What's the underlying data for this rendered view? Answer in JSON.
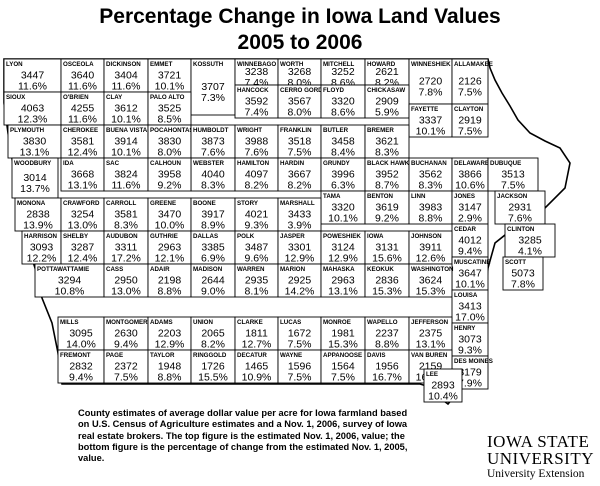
{
  "title": {
    "line1": "Percentage Change in Iowa Land Values",
    "line2": "2005 to 2006"
  },
  "footnote": "County estimates of average dollar value per acre for Iowa farmland based on U.S. Census of Agriculture estimates and a Nov. 1, 2006, survey of Iowa real estate brokers. The top figure is the estimated Nov. 1, 2006, value; the bottom figure is the percentage of change from the estimated Nov. 1, 2005, value.",
  "logo": {
    "line1": "IOWA STATE",
    "line2": "UNIVERSITY",
    "line3": "University Extension"
  },
  "counties": [
    {
      "name": "LYON",
      "value": "3447",
      "pct": "11.6%"
    },
    {
      "name": "OSCEOLA",
      "value": "3640",
      "pct": "11.6%"
    },
    {
      "name": "DICKINSON",
      "value": "3404",
      "pct": "11.6%"
    },
    {
      "name": "EMMET",
      "value": "3721",
      "pct": "10.1%"
    },
    {
      "name": "KOSSUTH",
      "value": "3707",
      "pct": "7.3%"
    },
    {
      "name": "WINNEBAGO",
      "value": "3238",
      "pct": "7.4%"
    },
    {
      "name": "WORTH",
      "value": "3268",
      "pct": "8.0%"
    },
    {
      "name": "MITCHELL",
      "value": "3252",
      "pct": "8.6%"
    },
    {
      "name": "HOWARD",
      "value": "2621",
      "pct": "8.2%"
    },
    {
      "name": "WINNESHIEK",
      "value": "2720",
      "pct": "7.8%"
    },
    {
      "name": "ALLAMAKEE",
      "value": "2126",
      "pct": "7.5%"
    },
    {
      "name": "SIOUX",
      "value": "4063",
      "pct": "12.3%"
    },
    {
      "name": "O'BRIEN",
      "value": "4255",
      "pct": "11.6%"
    },
    {
      "name": "CLAY",
      "value": "3612",
      "pct": "10.1%"
    },
    {
      "name": "PALO ALTO",
      "value": "3525",
      "pct": "8.5%"
    },
    {
      "name": "HANCOCK",
      "value": "3592",
      "pct": "7.4%"
    },
    {
      "name": "CERRO GORDO",
      "value": "3567",
      "pct": "8.0%"
    },
    {
      "name": "FLOYD",
      "value": "3320",
      "pct": "8.6%"
    },
    {
      "name": "CHICKASAW",
      "value": "2909",
      "pct": "5.9%"
    },
    {
      "name": "FAYETTE",
      "value": "3337",
      "pct": "10.1%"
    },
    {
      "name": "CLAYTON",
      "value": "2919",
      "pct": "7.5%"
    },
    {
      "name": "PLYMOUTH",
      "value": "3830",
      "pct": "13.1%"
    },
    {
      "name": "CHEROKEE",
      "value": "3581",
      "pct": "12.4%"
    },
    {
      "name": "BUENA VISTA",
      "value": "3914",
      "pct": "10.1%"
    },
    {
      "name": "POCAHONTAS",
      "value": "3830",
      "pct": "8.0%"
    },
    {
      "name": "HUMBOLDT",
      "value": "3873",
      "pct": "7.6%"
    },
    {
      "name": "WRIGHT",
      "value": "3988",
      "pct": "7.6%"
    },
    {
      "name": "FRANKLIN",
      "value": "3518",
      "pct": "7.5%"
    },
    {
      "name": "BUTLER",
      "value": "3458",
      "pct": "8.4%"
    },
    {
      "name": "BREMER",
      "value": "3621",
      "pct": "8.3%"
    },
    {
      "name": "WEBSTER",
      "value": "4040",
      "pct": "8.3%"
    },
    {
      "name": "HAMILTON",
      "value": "4097",
      "pct": "8.2%"
    },
    {
      "name": "HARDIN",
      "value": "3667",
      "pct": "8.2%"
    },
    {
      "name": "GRUNDY",
      "value": "3996",
      "pct": "6.3%"
    },
    {
      "name": "BLACK HAWK",
      "value": "3952",
      "pct": "8.7%"
    },
    {
      "name": "BUCHANAN",
      "value": "3562",
      "pct": "8.3%"
    },
    {
      "name": "DELAWARE",
      "value": "3866",
      "pct": "10.6%"
    },
    {
      "name": "DUBUQUE",
      "value": "3513",
      "pct": "7.5%"
    },
    {
      "name": "WOODBURY",
      "value": "3014",
      "pct": "13.7%"
    },
    {
      "name": "IDA",
      "value": "3668",
      "pct": "13.1%"
    },
    {
      "name": "SAC",
      "value": "3824",
      "pct": "11.6%"
    },
    {
      "name": "CALHOUN",
      "value": "3958",
      "pct": "9.2%"
    },
    {
      "name": "TAMA",
      "value": "3320",
      "pct": "10.1%"
    },
    {
      "name": "BENTON",
      "value": "3619",
      "pct": "9.2%"
    },
    {
      "name": "LINN",
      "value": "3983",
      "pct": "8.8%"
    },
    {
      "name": "JONES",
      "value": "3147",
      "pct": "2.9%"
    },
    {
      "name": "JACKSON",
      "value": "2931",
      "pct": "7.6%"
    },
    {
      "name": "MONONA",
      "value": "2838",
      "pct": "13.9%"
    },
    {
      "name": "CRAWFORD",
      "value": "3254",
      "pct": "13.0%"
    },
    {
      "name": "CARROLL",
      "value": "3581",
      "pct": "8.3%"
    },
    {
      "name": "GREENE",
      "value": "3470",
      "pct": "10.0%"
    },
    {
      "name": "BOONE",
      "value": "3917",
      "pct": "8.9%"
    },
    {
      "name": "STORY",
      "value": "4021",
      "pct": "9.3%"
    },
    {
      "name": "MARSHALL",
      "value": "3433",
      "pct": "3.9%"
    },
    {
      "name": "CLINTON",
      "value": "3285",
      "pct": "4.1%"
    },
    {
      "name": "CEDAR",
      "value": "4012",
      "pct": "9.4%"
    },
    {
      "name": "HARRISON",
      "value": "3093",
      "pct": "12.2%"
    },
    {
      "name": "SHELBY",
      "value": "3287",
      "pct": "12.4%"
    },
    {
      "name": "AUDUBON",
      "value": "3311",
      "pct": "17.2%"
    },
    {
      "name": "GUTHRIE",
      "value": "2963",
      "pct": "12.1%"
    },
    {
      "name": "DALLAS",
      "value": "3385",
      "pct": "6.9%"
    },
    {
      "name": "POLK",
      "value": "3487",
      "pct": "9.6%"
    },
    {
      "name": "JASPER",
      "value": "3301",
      "pct": "12.9%"
    },
    {
      "name": "POWESHIEK",
      "value": "3124",
      "pct": "12.9%"
    },
    {
      "name": "IOWA",
      "value": "3131",
      "pct": "15.6%"
    },
    {
      "name": "JOHNSON",
      "value": "3911",
      "pct": "12.6%"
    },
    {
      "name": "SCOTT",
      "value": "5073",
      "pct": "7.8%"
    },
    {
      "name": "MUSCATINE",
      "value": "3647",
      "pct": "10.1%"
    },
    {
      "name": "POTTAWATTAMIE",
      "value": "3294",
      "pct": "10.8%"
    },
    {
      "name": "CASS",
      "value": "2950",
      "pct": "13.0%"
    },
    {
      "name": "ADAIR",
      "value": "2198",
      "pct": "8.8%"
    },
    {
      "name": "MADISON",
      "value": "2644",
      "pct": "9.0%"
    },
    {
      "name": "WARREN",
      "value": "2935",
      "pct": "8.1%"
    },
    {
      "name": "MARION",
      "value": "2925",
      "pct": "14.2%"
    },
    {
      "name": "MAHASKA",
      "value": "2963",
      "pct": "13.1%"
    },
    {
      "name": "KEOKUK",
      "value": "2836",
      "pct": "15.3%"
    },
    {
      "name": "WASHINGTON",
      "value": "3624",
      "pct": "15.3%"
    },
    {
      "name": "LOUISA",
      "value": "3413",
      "pct": "17.0%"
    },
    {
      "name": "MILLS",
      "value": "3095",
      "pct": "14.0%"
    },
    {
      "name": "MONTGOMERY",
      "value": "2630",
      "pct": "9.4%"
    },
    {
      "name": "ADAMS",
      "value": "2203",
      "pct": "12.9%"
    },
    {
      "name": "UNION",
      "value": "2065",
      "pct": "8.2%"
    },
    {
      "name": "CLARKE",
      "value": "1811",
      "pct": "12.7%"
    },
    {
      "name": "LUCAS",
      "value": "1672",
      "pct": "7.5%"
    },
    {
      "name": "MONROE",
      "value": "1981",
      "pct": "15.3%"
    },
    {
      "name": "WAPELLO",
      "value": "2237",
      "pct": "8.8%"
    },
    {
      "name": "JEFFERSON",
      "value": "2375",
      "pct": "13.1%"
    },
    {
      "name": "HENRY",
      "value": "3073",
      "pct": "9.3%"
    },
    {
      "name": "DES MOINES",
      "value": "3179",
      "pct": "7.9%"
    },
    {
      "name": "FREMONT",
      "value": "2832",
      "pct": "9.4%"
    },
    {
      "name": "PAGE",
      "value": "2372",
      "pct": "7.5%"
    },
    {
      "name": "TAYLOR",
      "value": "1948",
      "pct": "8.8%"
    },
    {
      "name": "RINGGOLD",
      "value": "1726",
      "pct": "15.5%"
    },
    {
      "name": "DECATUR",
      "value": "1465",
      "pct": "10.9%"
    },
    {
      "name": "WAYNE",
      "value": "1596",
      "pct": "7.5%"
    },
    {
      "name": "APPANOOSE",
      "value": "1564",
      "pct": "7.5%"
    },
    {
      "name": "DAVIS",
      "value": "1956",
      "pct": "16.7%"
    },
    {
      "name": "VAN BUREN",
      "value": "2159",
      "pct": "16.7%"
    },
    {
      "name": "LEE",
      "value": "2893",
      "pct": "10.4%"
    }
  ]
}
